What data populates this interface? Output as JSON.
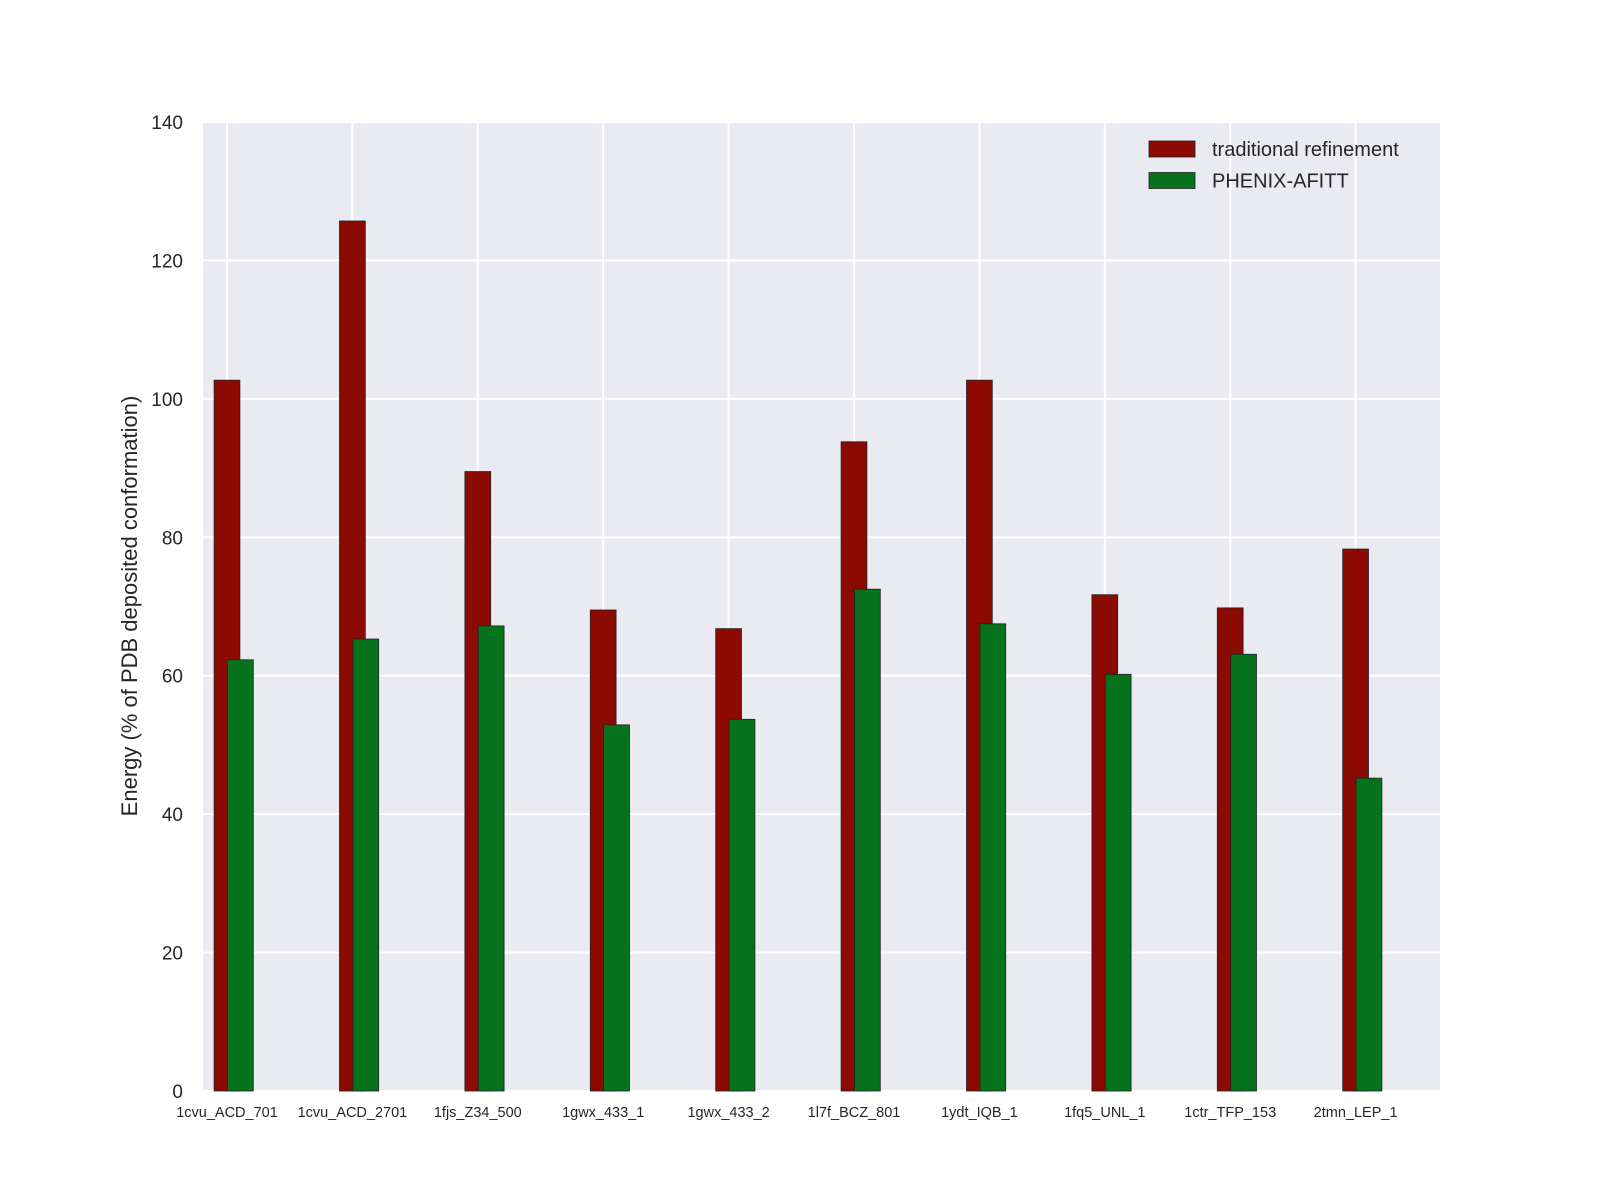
{
  "chart_data": {
    "type": "bar",
    "title": "",
    "xlabel": "",
    "ylabel": "Energy (% of PDB deposited conformation)",
    "ylim": [
      0,
      140
    ],
    "yticks": [
      0,
      20,
      40,
      60,
      80,
      100,
      120,
      140
    ],
    "grid": true,
    "legend_position": "top-right",
    "categories": [
      "1cvu_ACD_701",
      "1cvu_ACD_2701",
      "1fjs_Z34_500",
      "1gwx_433_1",
      "1gwx_433_2",
      "1l7f_BCZ_801",
      "1ydt_IQB_1",
      "1fq5_UNL_1",
      "1ctr_TFP_153",
      "2tmn_LEP_1"
    ],
    "series": [
      {
        "name": "traditional refinement",
        "color": "#8b0a02",
        "values": [
          102.7,
          125.7,
          89.5,
          69.5,
          66.8,
          93.8,
          102.7,
          71.7,
          69.8,
          78.3
        ]
      },
      {
        "name": "PHENIX-AFITT",
        "color": "#06731c",
        "values": [
          62.3,
          65.3,
          67.2,
          52.9,
          53.7,
          72.5,
          67.5,
          60.2,
          63.1,
          45.2
        ]
      }
    ],
    "background": "#eaeaf2"
  }
}
